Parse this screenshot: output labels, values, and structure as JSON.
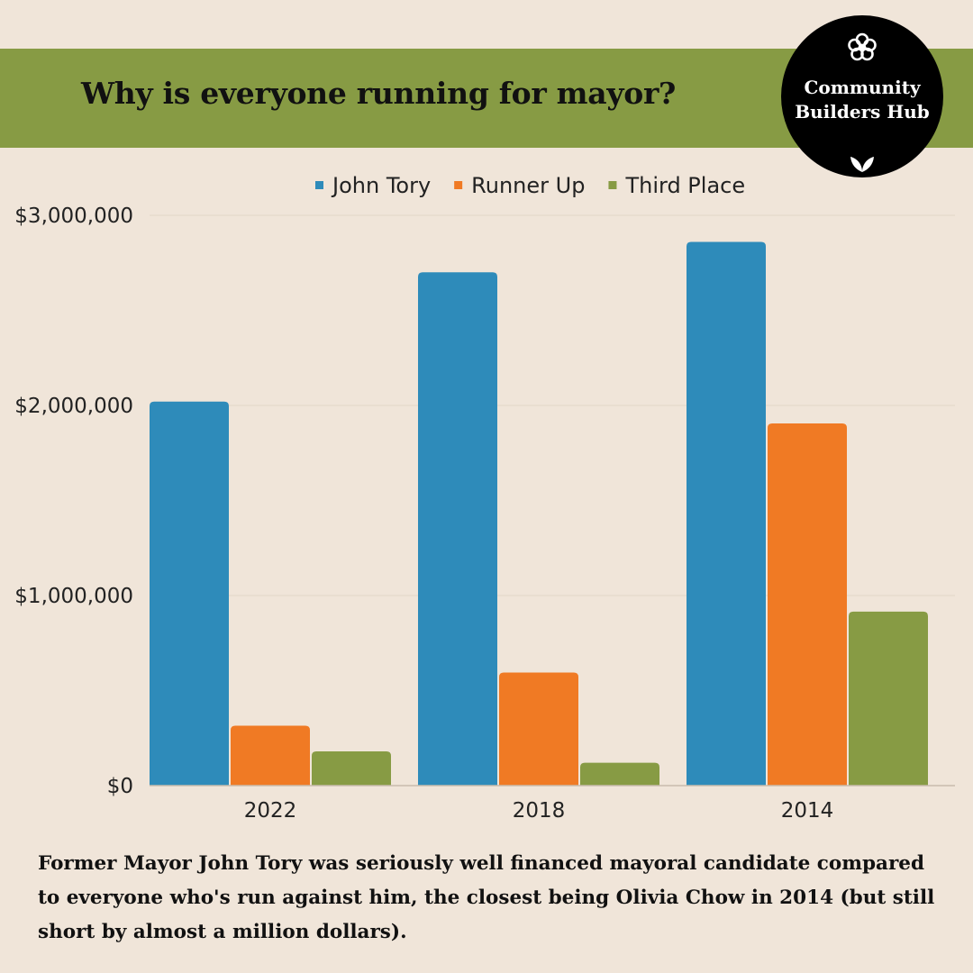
{
  "header": {
    "title": "Why is everyone running for mayor?"
  },
  "badge": {
    "line1": "Community",
    "line2": "Builders Hub",
    "icons": [
      "flower-icon",
      "leaf-icon"
    ]
  },
  "colors": {
    "background": "#f0e5d9",
    "banner": "#879b44",
    "john_tory": "#2e8bba",
    "runner_up": "#f07a24",
    "third_place": "#879b44"
  },
  "chart_data": {
    "type": "bar",
    "title": "",
    "xlabel": "",
    "ylabel": "",
    "categories": [
      "2022",
      "2018",
      "2014"
    ],
    "series": [
      {
        "name": "John Tory",
        "values": [
          2020000,
          2700000,
          2860000
        ]
      },
      {
        "name": "Runner Up",
        "values": [
          315000,
          595000,
          1905000
        ]
      },
      {
        "name": "Third Place",
        "values": [
          180000,
          120000,
          915000
        ]
      }
    ],
    "ylim": [
      0,
      3000000
    ],
    "yticks": [
      0,
      1000000,
      2000000,
      3000000
    ],
    "ytick_labels": [
      "$0",
      "$1,000,000",
      "$2,000,000",
      "$3,000,000"
    ],
    "grid": true,
    "legend_position": "top"
  },
  "caption": "Former Mayor John Tory was seriously well financed mayoral candidate compared to everyone who's run against him, the closest being Olivia Chow in 2014 (but still short by almost a million dollars)."
}
